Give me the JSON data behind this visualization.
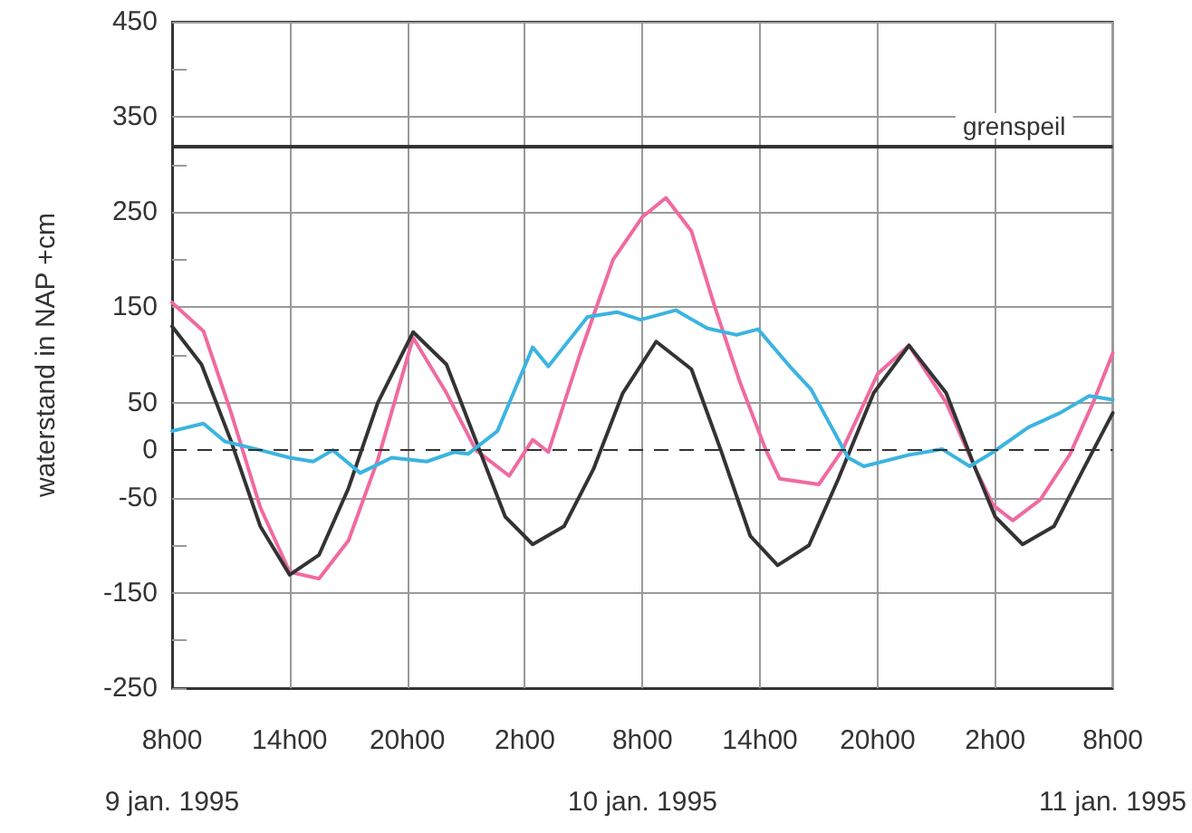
{
  "chart_data": {
    "type": "line",
    "ylabel": "waterstand in NAP +cm",
    "xlim": [
      "1995-01-09T08:00",
      "1995-01-11T08:00"
    ],
    "xticks": [
      {
        "value": "1995-01-09T08:00",
        "label": "8h00\n9 jan. 1995"
      },
      {
        "value": "1995-01-09T14:00",
        "label": "14h00"
      },
      {
        "value": "1995-01-09T20:00",
        "label": "20h00"
      },
      {
        "value": "1995-01-10T02:00",
        "label": "2h00"
      },
      {
        "value": "1995-01-10T08:00",
        "label": "8h00\n10 jan. 1995"
      },
      {
        "value": "1995-01-10T14:00",
        "label": "14h00"
      },
      {
        "value": "1995-01-10T20:00",
        "label": "20h00"
      },
      {
        "value": "1995-01-11T02:00",
        "label": "2h00"
      },
      {
        "value": "1995-01-11T08:00",
        "label": "8h00\n11 jan. 1995"
      }
    ],
    "ylim": [
      -250,
      450
    ],
    "yticks": [
      -250,
      {
        "value": -200,
        "label": null
      },
      -150,
      {
        "value": -100,
        "label": null
      },
      -50,
      0,
      50,
      {
        "value": 100,
        "label": null
      },
      150,
      {
        "value": 200,
        "label": null
      },
      250,
      {
        "value": 300,
        "label": null
      },
      350,
      {
        "value": 400,
        "label": null
      },
      450
    ],
    "grid": true,
    "marker": "none",
    "ref_lines": [
      {
        "axis": "y",
        "value": 320,
        "label": "grenspeil",
        "color": "#333333",
        "line_style": "solid"
      },
      {
        "axis": "y",
        "value": 0,
        "label": null,
        "color": "#333333",
        "line_style": "dashed"
      }
    ],
    "series": [
      {
        "color": "#f06aa0",
        "x": [
          "1995-01-09T08:00",
          "1995-01-09T09:36",
          "1995-01-09T11:00",
          "1995-01-09T12:30",
          "1995-01-09T14:00",
          "1995-01-09T15:30",
          "1995-01-09T17:00",
          "1995-01-09T18:30",
          "1995-01-09T20:18",
          "1995-01-09T22:00",
          "1995-01-09T23:30",
          "1995-01-10T01:12",
          "1995-01-10T02:24",
          "1995-01-10T03:12",
          "1995-01-10T04:48",
          "1995-01-10T06:30",
          "1995-01-10T08:00",
          "1995-01-10T09:12",
          "1995-01-10T10:30",
          "1995-01-10T11:42",
          "1995-01-10T13:00",
          "1995-01-10T14:18",
          "1995-01-10T15:00",
          "1995-01-10T17:00",
          "1995-01-10T18:12",
          "1995-01-10T20:00",
          "1995-01-10T21:36",
          "1995-01-10T23:30",
          "1995-01-11T01:00",
          "1995-01-11T01:54",
          "1995-01-11T02:54",
          "1995-01-11T04:18",
          "1995-01-11T05:48",
          "1995-01-11T07:00",
          "1995-01-11T08:00"
        ],
        "values": [
          155,
          125,
          40,
          -60,
          -128,
          -135,
          -95,
          -10,
          118,
          60,
          0,
          -27,
          11,
          -2,
          100,
          200,
          245,
          265,
          230,
          150,
          70,
          0,
          -30,
          -36,
          0,
          80,
          110,
          50,
          -20,
          -58,
          -74,
          -52,
          -5,
          50,
          102
        ]
      },
      {
        "color": "#333333",
        "x": [
          "1995-01-09T08:00",
          "1995-01-09T09:30",
          "1995-01-09T11:00",
          "1995-01-09T12:30",
          "1995-01-09T14:00",
          "1995-01-09T15:30",
          "1995-01-09T17:00",
          "1995-01-09T18:30",
          "1995-01-09T20:18",
          "1995-01-09T22:00",
          "1995-01-09T23:30",
          "1995-01-10T01:00",
          "1995-01-10T02:24",
          "1995-01-10T04:00",
          "1995-01-10T05:30",
          "1995-01-10T07:00",
          "1995-01-10T08:42",
          "1995-01-10T10:30",
          "1995-01-10T12:00",
          "1995-01-10T13:30",
          "1995-01-10T14:54",
          "1995-01-10T16:30",
          "1995-01-10T18:00",
          "1995-01-10T19:48",
          "1995-01-10T21:36",
          "1995-01-10T23:30",
          "1995-01-11T01:00",
          "1995-01-11T02:00",
          "1995-01-11T03:24",
          "1995-01-11T05:00",
          "1995-01-11T06:30",
          "1995-01-11T08:00"
        ],
        "values": [
          130,
          90,
          10,
          -80,
          -131,
          -110,
          -40,
          50,
          124,
          90,
          10,
          -70,
          -99,
          -80,
          -20,
          60,
          114,
          85,
          0,
          -90,
          -121,
          -100,
          -30,
          60,
          110,
          60,
          -20,
          -70,
          -99,
          -80,
          -20,
          39
        ]
      },
      {
        "color": "#3bb4e0",
        "x": [
          "1995-01-09T08:00",
          "1995-01-09T09:36",
          "1995-01-09T10:42",
          "1995-01-09T12:30",
          "1995-01-09T14:00",
          "1995-01-09T15:12",
          "1995-01-09T16:12",
          "1995-01-09T17:36",
          "1995-01-09T19:12",
          "1995-01-09T21:00",
          "1995-01-09T22:24",
          "1995-01-09T23:06",
          "1995-01-10T00:36",
          "1995-01-10T02:24",
          "1995-01-10T03:12",
          "1995-01-10T05:12",
          "1995-01-10T06:42",
          "1995-01-10T07:54",
          "1995-01-10T09:42",
          "1995-01-10T11:18",
          "1995-01-10T12:48",
          "1995-01-10T13:54",
          "1995-01-10T15:36",
          "1995-01-10T16:36",
          "1995-01-10T17:06",
          "1995-01-10T18:30",
          "1995-01-10T19:18",
          "1995-01-10T21:36",
          "1995-01-10T23:18",
          "1995-01-11T00:42",
          "1995-01-11T01:54",
          "1995-01-11T03:42",
          "1995-01-11T05:18",
          "1995-01-11T06:48",
          "1995-01-11T08:00"
        ],
        "values": [
          20,
          28,
          9,
          0,
          -8,
          -12,
          0,
          -24,
          -8,
          -12,
          -2,
          -4,
          20,
          108,
          88,
          140,
          145,
          137,
          147,
          128,
          121,
          127,
          86,
          64,
          45,
          -8,
          -17,
          -5,
          1,
          -17,
          -2,
          24,
          39,
          57,
          53
        ]
      }
    ]
  }
}
